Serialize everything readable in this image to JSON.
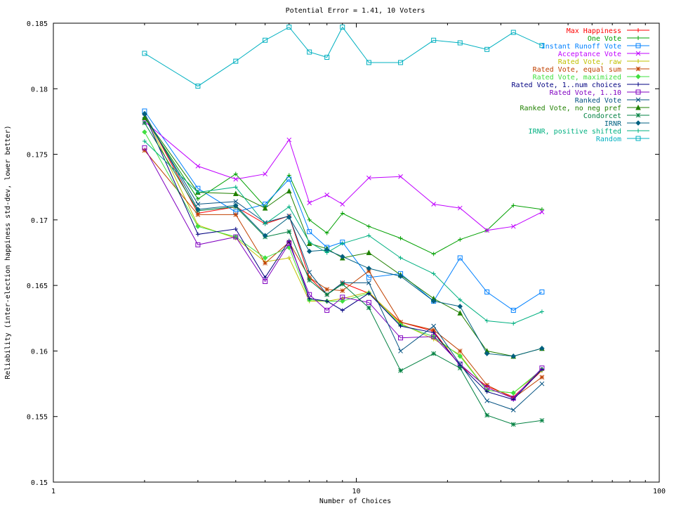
{
  "chart_data": {
    "type": "line",
    "title": "Potential Error = 1.41, 10 Voters",
    "xlabel": "Number of Choices",
    "ylabel": "Reliability (inter-election happiness std-dev, lower better)",
    "x_scale": "log",
    "xlim": [
      1,
      100
    ],
    "ylim": [
      0.15,
      0.185
    ],
    "x_ticks": [
      1,
      10,
      100
    ],
    "x_tick_labels": [
      "1",
      "10",
      "100"
    ],
    "y_ticks": [
      0.15,
      0.155,
      0.16,
      0.165,
      0.17,
      0.175,
      0.18,
      0.185
    ],
    "y_tick_labels": [
      "0.15",
      "0.155",
      "0.16",
      "0.165",
      "0.17",
      "0.175",
      "0.18",
      "0.185"
    ],
    "grid": false,
    "legend_position": "top-right",
    "x": [
      2,
      3,
      4,
      5,
      6,
      7,
      8,
      9,
      11,
      14,
      18,
      22,
      27,
      33,
      41
    ],
    "series": [
      {
        "name": "Max Happiness",
        "color": "#ff0000",
        "marker": "plus",
        "values": [
          0.1781,
          0.1705,
          0.171,
          0.1697,
          0.1703,
          0.1656,
          0.1643,
          0.1652,
          0.1644,
          0.1622,
          0.1615,
          0.1589,
          0.1573,
          0.1565,
          0.1585
        ]
      },
      {
        "name": "One Vote",
        "color": "#00a000",
        "marker": "plus",
        "values": [
          0.1778,
          0.1716,
          0.1735,
          0.171,
          0.1734,
          0.17,
          0.169,
          0.1705,
          0.1695,
          0.1686,
          0.1674,
          0.1685,
          0.1692,
          0.1711,
          0.1708
        ]
      },
      {
        "name": "Instant Runoff Vote",
        "color": "#0080ff",
        "marker": "square",
        "values": [
          0.1783,
          0.1724,
          0.1706,
          0.1712,
          0.1731,
          0.1691,
          0.1679,
          0.1683,
          0.1656,
          0.1659,
          0.1638,
          0.1671,
          0.1645,
          0.1631,
          0.1645
        ]
      },
      {
        "name": "Acceptance Vote",
        "color": "#c000ff",
        "marker": "x",
        "values": [
          0.1775,
          0.1741,
          0.1731,
          0.1735,
          0.1761,
          0.1713,
          0.1719,
          0.1712,
          0.1732,
          0.1733,
          0.1712,
          0.1709,
          0.1692,
          0.1695,
          0.1706
        ]
      },
      {
        "name": "Rated Vote, raw",
        "color": "#c0c000",
        "marker": "plus",
        "values": [
          0.1781,
          0.1696,
          0.1686,
          0.1668,
          0.1671,
          0.1638,
          0.1638,
          0.164,
          0.1645,
          0.1621,
          0.1609,
          0.1597,
          0.157,
          0.1568,
          0.1585
        ]
      },
      {
        "name": "Rated Vote, equal sum",
        "color": "#c04000",
        "marker": "star",
        "values": [
          0.1753,
          0.1704,
          0.1704,
          0.1667,
          0.1683,
          0.1656,
          0.1647,
          0.1646,
          0.1661,
          0.1622,
          0.1616,
          0.16,
          0.1574,
          0.1564,
          0.158
        ]
      },
      {
        "name": "Rated Vote, maximized",
        "color": "#40e040",
        "marker": "diamond",
        "values": [
          0.1767,
          0.1695,
          0.1687,
          0.1671,
          0.1679,
          0.1639,
          0.1638,
          0.1638,
          0.1644,
          0.162,
          0.1611,
          0.1596,
          0.157,
          0.1568,
          0.1586
        ]
      },
      {
        "name": "Rated Vote, 1..num choices",
        "color": "#000080",
        "marker": "plus",
        "values": [
          0.178,
          0.1689,
          0.1693,
          0.1656,
          0.1684,
          0.164,
          0.1638,
          0.1631,
          0.1644,
          0.1619,
          0.1614,
          0.1589,
          0.1569,
          0.1563,
          0.1586
        ]
      },
      {
        "name": "Rated Vote, 1..10",
        "color": "#8000c0",
        "marker": "square",
        "values": [
          0.1755,
          0.1681,
          0.1687,
          0.1653,
          0.1682,
          0.1643,
          0.1631,
          0.1641,
          0.1637,
          0.161,
          0.1611,
          0.159,
          0.1572,
          0.1564,
          0.1587
        ]
      },
      {
        "name": "Ranked Vote",
        "color": "#005080",
        "marker": "x",
        "values": [
          0.1779,
          0.1712,
          0.1714,
          0.1698,
          0.1703,
          0.166,
          0.1643,
          0.1652,
          0.1652,
          0.16,
          0.1619,
          0.159,
          0.1562,
          0.1555,
          0.1575
        ]
      },
      {
        "name": "Ranked Vote, no neg pref",
        "color": "#208000",
        "marker": "triangle",
        "values": [
          0.1778,
          0.1721,
          0.172,
          0.1709,
          0.1722,
          0.1682,
          0.1678,
          0.1671,
          0.1675,
          0.1658,
          0.164,
          0.1629,
          0.16,
          0.1596,
          0.1602
        ]
      },
      {
        "name": "Condorcet",
        "color": "#008040",
        "marker": "star",
        "values": [
          0.1774,
          0.1707,
          0.171,
          0.1687,
          0.1691,
          0.1654,
          0.1643,
          0.1651,
          0.1633,
          0.1585,
          0.1598,
          0.1587,
          0.1551,
          0.1544,
          0.1547
        ]
      },
      {
        "name": "IRNR",
        "color": "#006080",
        "marker": "diamond",
        "values": [
          0.1781,
          0.1708,
          0.1711,
          0.1688,
          0.1702,
          0.1676,
          0.1677,
          0.1672,
          0.1663,
          0.1657,
          0.1638,
          0.1634,
          0.1598,
          0.1596,
          0.1602
        ]
      },
      {
        "name": "IRNR, positive shifted",
        "color": "#00b080",
        "marker": "plus",
        "values": [
          0.176,
          0.1721,
          0.1725,
          0.1697,
          0.171,
          0.1683,
          0.1675,
          0.1682,
          0.1688,
          0.1671,
          0.1659,
          0.1639,
          0.1623,
          0.1621,
          0.163
        ]
      },
      {
        "name": "Random",
        "color": "#00b0c0",
        "marker": "square",
        "values": [
          0.1827,
          0.1802,
          0.1821,
          0.1837,
          0.1847,
          0.1828,
          0.1824,
          0.1847,
          0.182,
          0.182,
          0.1837,
          0.1835,
          0.183,
          0.1843,
          0.1833
        ]
      }
    ]
  }
}
